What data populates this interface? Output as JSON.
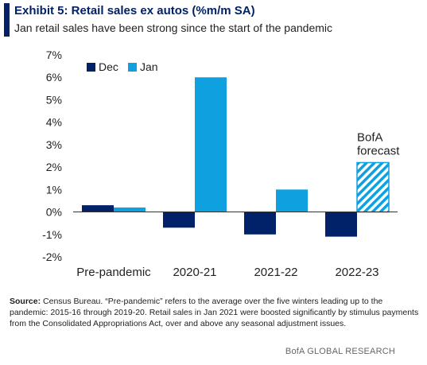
{
  "header": {
    "title": "Exhibit 5: Retail sales ex autos (%m/m SA)",
    "subtitle": "Jan retail sales have been strong since the start of the pandemic"
  },
  "footer": {
    "source_label": "Source:",
    "source_text": "Census Bureau. “Pre-pandemic” refers to the average over the five winters leading up to the pandemic: 2015-16 through 2019-20. Retail sales in Jan 2021 were boosted significantly by stimulus payments from the Consolidated Appropriations Act, over and above any seasonal adjustment issues.",
    "brand": "BofA GLOBAL RESEARCH"
  },
  "chart_data": {
    "type": "bar",
    "categories": [
      "Pre-pandemic",
      "2020-21",
      "2021-22",
      "2022-23"
    ],
    "series": [
      {
        "name": "Dec",
        "color": "#012169",
        "values": [
          0.3,
          -0.7,
          -1.0,
          -1.1
        ]
      },
      {
        "name": "Jan",
        "color": "#0fa0e0",
        "values": [
          0.2,
          6.0,
          1.0,
          2.2
        ]
      }
    ],
    "forecast": {
      "category": "2022-23",
      "series": "Jan",
      "pattern": "hatched"
    },
    "annotations": [
      {
        "text_lines": [
          "BofA",
          "forecast"
        ],
        "target": "2022-23 Jan"
      }
    ],
    "yticks": [
      "7%",
      "6%",
      "5%",
      "4%",
      "3%",
      "2%",
      "1%",
      "0%",
      "-1%",
      "-2%"
    ],
    "ylim": [
      -2,
      7
    ],
    "legend_position": "top-left",
    "grid": false
  }
}
